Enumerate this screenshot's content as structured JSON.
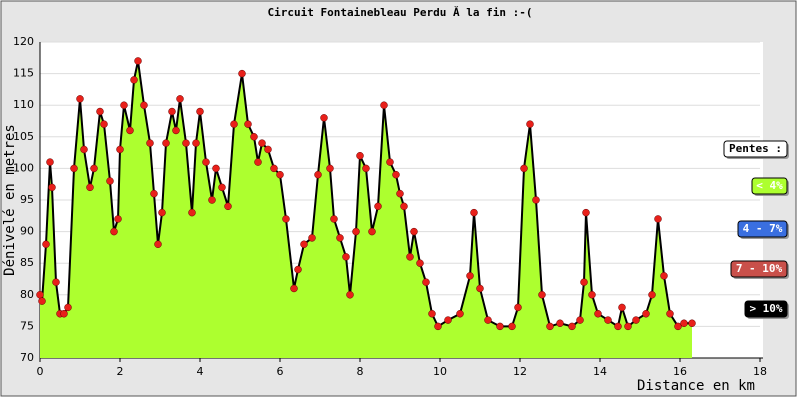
{
  "chart_data": {
    "type": "area",
    "title": "Circuit Fontainebleau Perdu Ă  la fin :-(",
    "x_label": "Distance en km",
    "y_label": "Dénivelé en metres",
    "xlim": [
      0,
      18
    ],
    "xticks": [
      0,
      2,
      4,
      6,
      8,
      10,
      12,
      14,
      16,
      18
    ],
    "ylim": [
      70,
      120
    ],
    "yticks": [
      70,
      75,
      80,
      85,
      90,
      95,
      100,
      105,
      110,
      115,
      120
    ],
    "grid": true,
    "fill_color": "#adff2f",
    "line_color": "#000000",
    "marker_color": "#e8201a",
    "x": [
      0,
      0.05,
      0.15,
      0.25,
      0.3,
      0.4,
      0.5,
      0.6,
      0.7,
      0.85,
      1.0,
      1.1,
      1.25,
      1.35,
      1.5,
      1.6,
      1.75,
      1.85,
      1.95,
      2.0,
      2.1,
      2.25,
      2.35,
      2.45,
      2.6,
      2.75,
      2.85,
      2.95,
      3.05,
      3.15,
      3.3,
      3.4,
      3.5,
      3.65,
      3.8,
      3.9,
      4.0,
      4.15,
      4.3,
      4.4,
      4.55,
      4.7,
      4.85,
      5.05,
      5.2,
      5.35,
      5.45,
      5.55,
      5.7,
      5.85,
      6.0,
      6.15,
      6.35,
      6.45,
      6.6,
      6.8,
      6.95,
      7.1,
      7.25,
      7.35,
      7.5,
      7.65,
      7.75,
      7.9,
      8.0,
      8.15,
      8.3,
      8.45,
      8.6,
      8.75,
      8.9,
      9.0,
      9.1,
      9.25,
      9.35,
      9.5,
      9.65,
      9.8,
      9.95,
      10.2,
      10.5,
      10.75,
      10.85,
      11.0,
      11.2,
      11.5,
      11.8,
      11.95,
      12.1,
      12.25,
      12.4,
      12.55,
      12.75,
      13.0,
      13.3,
      13.5,
      13.6,
      13.65,
      13.8,
      13.95,
      14.2,
      14.45,
      14.55,
      14.7,
      14.9,
      15.15,
      15.3,
      15.45,
      15.6,
      15.75,
      15.95,
      16.1,
      16.3
    ],
    "values": [
      80,
      79,
      88,
      101,
      97,
      82,
      77,
      77,
      78,
      100,
      111,
      103,
      97,
      100,
      109,
      107,
      98,
      90,
      92,
      103,
      110,
      106,
      114,
      117,
      110,
      104,
      96,
      88,
      93,
      104,
      109,
      106,
      111,
      104,
      93,
      104,
      109,
      101,
      95,
      100,
      97,
      94,
      107,
      115,
      107,
      105,
      101,
      104,
      103,
      100,
      99,
      92,
      81,
      84,
      88,
      89,
      99,
      108,
      100,
      92,
      89,
      86,
      80,
      90,
      102,
      100,
      90,
      94,
      110,
      101,
      99,
      96,
      94,
      86,
      90,
      85,
      82,
      77,
      75,
      76,
      77,
      83,
      93,
      81,
      76,
      75,
      75,
      78,
      100,
      107,
      95,
      80,
      75,
      75.5,
      75,
      76,
      82,
      93,
      80,
      77,
      76,
      75,
      78,
      75,
      76,
      77,
      80,
      92,
      83,
      77,
      75,
      75.5,
      75.5
    ],
    "legend": {
      "title": "Pentes :",
      "entries": [
        {
          "label": "< 4%",
          "color": "#adff2f"
        },
        {
          "label": "4 - 7%",
          "color": "#3a6fe0"
        },
        {
          "label": "7 - 10%",
          "color": "#c9504a"
        },
        {
          "label": "> 10%",
          "color": "#000000"
        }
      ]
    }
  }
}
